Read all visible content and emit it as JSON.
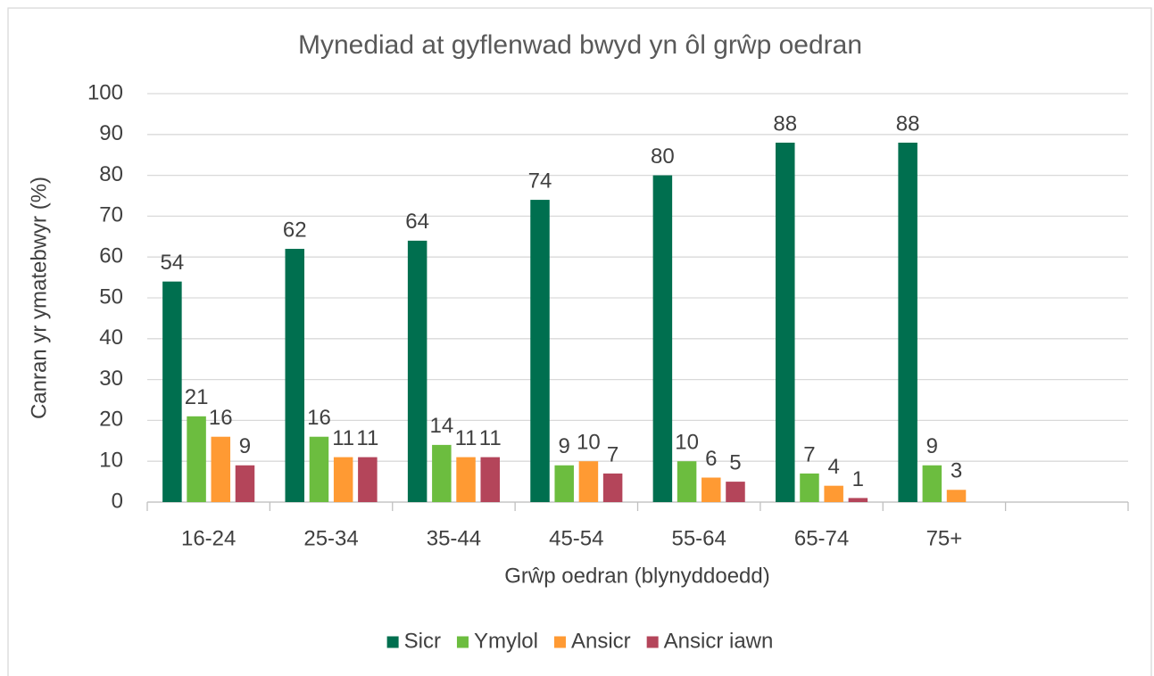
{
  "chart_data": {
    "type": "bar",
    "title": "Mynediad at gyflenwad bwyd yn ôl grŵp oedran",
    "x_label": "Grŵp oedran (blynyddoedd)",
    "y_label": "Canran yr ymatebwyr (%)",
    "categories": [
      "16-24",
      "25-34",
      "35-44",
      "45-54",
      "55-64",
      "65-74",
      "75+",
      null
    ],
    "series": [
      {
        "name": "Sicr",
        "color": "#006f4f",
        "values": [
          54,
          62,
          64,
          74,
          80,
          88,
          88,
          null
        ]
      },
      {
        "name": "Ymylol",
        "color": "#6cbd3f",
        "values": [
          21,
          16,
          14,
          9,
          10,
          7,
          9,
          null
        ]
      },
      {
        "name": "Ansicr",
        "color": "#ff9a33",
        "values": [
          16,
          11,
          11,
          10,
          6,
          4,
          3,
          null
        ]
      },
      {
        "name": "Ansicr iawn",
        "color": "#b4455a",
        "values": [
          9,
          11,
          11,
          7,
          5,
          1,
          null,
          null
        ]
      }
    ],
    "ylim": [
      0,
      100
    ],
    "yticks": [
      0,
      10,
      20,
      30,
      40,
      50,
      60,
      70,
      80,
      90,
      100
    ],
    "grid": true,
    "legend": "bottom"
  }
}
